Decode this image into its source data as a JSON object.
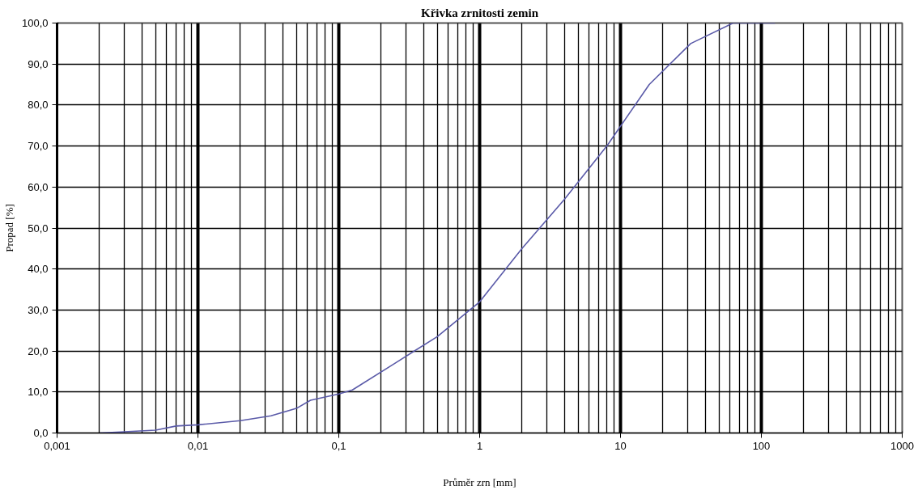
{
  "chart_data": {
    "type": "line",
    "title": "Křivka zrnitosti zemin",
    "xlabel": "Průměr zrn [mm]",
    "ylabel": "Propad [%]",
    "x": [
      0.002,
      0.003,
      0.005,
      0.007,
      0.01,
      0.02,
      0.033,
      0.05,
      0.063,
      0.1,
      0.125,
      0.25,
      0.5,
      1,
      2,
      4,
      8,
      16,
      31.5,
      63,
      125
    ],
    "series": [
      {
        "color": "#5a5aa8",
        "values": [
          0,
          0.3,
          0.7,
          1.7,
          2,
          3,
          4.2,
          6,
          8,
          9.5,
          10.5,
          17,
          23.5,
          32,
          45,
          57,
          70,
          85,
          95,
          100,
          100
        ]
      }
    ],
    "log": "x",
    "xlim": [
      0.001,
      1000
    ],
    "ylim": [
      0,
      100
    ],
    "xticks": [
      {
        "value": 0.001,
        "label": "0,001"
      },
      {
        "value": 0.01,
        "label": "0,01"
      },
      {
        "value": 0.1,
        "label": "0,1"
      },
      1,
      10,
      100,
      1000
    ],
    "yticks": [
      {
        "value": 0,
        "label": "0,0"
      },
      {
        "value": 10,
        "label": "10,0"
      },
      {
        "value": 20,
        "label": "20,0"
      },
      {
        "value": 30,
        "label": "30,0"
      },
      {
        "value": 40,
        "label": "40,0"
      },
      {
        "value": 50,
        "label": "50,0"
      },
      {
        "value": 60,
        "label": "60,0"
      },
      {
        "value": 70,
        "label": "70,0"
      },
      {
        "value": 80,
        "label": "80,0"
      },
      {
        "value": 90,
        "label": "90,0"
      },
      {
        "value": 100,
        "label": "100,0"
      }
    ],
    "grid": true,
    "marker": "none",
    "line_style": "solid"
  }
}
